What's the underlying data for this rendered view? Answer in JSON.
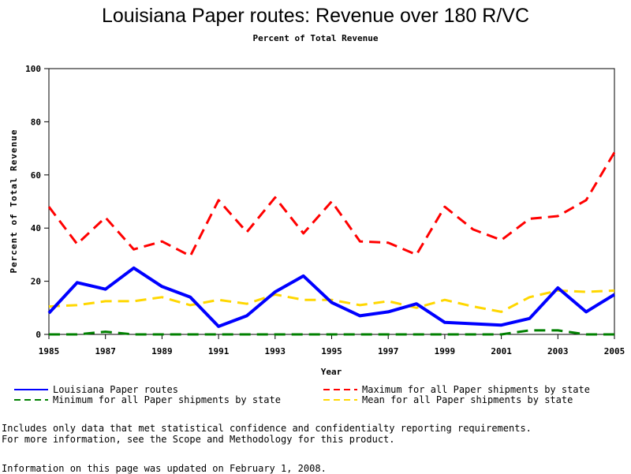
{
  "chart_data": {
    "type": "line",
    "title": "Louisiana Paper routes: Revenue over 180 R/VC",
    "subtitle": "Percent of Total Revenue",
    "xlabel": "Year",
    "ylabel": "Percent of Total Revenue",
    "xlim": [
      1985,
      2005
    ],
    "ylim": [
      0,
      100
    ],
    "x_ticks": [
      1985,
      1987,
      1989,
      1991,
      1993,
      1995,
      1997,
      1999,
      2001,
      2003,
      2005
    ],
    "y_ticks": [
      0,
      20,
      40,
      60,
      80,
      100
    ],
    "x": [
      1985,
      1986,
      1987,
      1988,
      1989,
      1990,
      1991,
      1992,
      1993,
      1994,
      1995,
      1996,
      1997,
      1998,
      1999,
      2000,
      2001,
      2002,
      2003,
      2004,
      2005
    ],
    "series": [
      {
        "name": "Louisiana Paper routes",
        "color": "#0000ff",
        "style": "solid",
        "values": [
          8,
          19.5,
          17,
          25,
          18,
          14,
          3,
          7,
          16,
          22,
          12,
          7,
          8.5,
          11.5,
          4.5,
          4,
          3.5,
          6,
          17.5,
          8.5,
          15
        ]
      },
      {
        "name": "Maximum for all Paper shipments by state",
        "color": "#ff0000",
        "style": "dashed",
        "values": [
          48,
          34,
          44,
          32,
          35,
          29.5,
          50.5,
          38.5,
          51.5,
          38,
          50,
          35,
          34.5,
          30,
          48,
          39.5,
          35.5,
          43.5,
          44.5,
          50.5,
          68.5
        ]
      },
      {
        "name": "Minimum for all Paper shipments by state",
        "color": "#008000",
        "style": "dashed",
        "values": [
          0,
          0,
          1,
          0,
          0,
          0,
          0,
          0,
          0,
          0,
          0,
          0,
          0,
          0,
          0,
          0,
          0,
          1.5,
          1.5,
          0,
          0
        ]
      },
      {
        "name": "Mean for all Paper shipments by state",
        "color": "#ffd700",
        "style": "dashed",
        "values": [
          10.5,
          11,
          12.5,
          12.5,
          14,
          11,
          13,
          11.5,
          15,
          13,
          13,
          11,
          12.5,
          10,
          13,
          10.5,
          8.5,
          14,
          16.5,
          16,
          16.5
        ]
      }
    ],
    "legend_placement": "bottom",
    "grid": false
  },
  "notes": {
    "line1": "Includes only data that met statistical confidence and confidentialty reporting requirements.",
    "line2": "For more information, see the Scope and Methodology for this product.",
    "updated": "Information on this page was updated on February 1, 2008."
  }
}
